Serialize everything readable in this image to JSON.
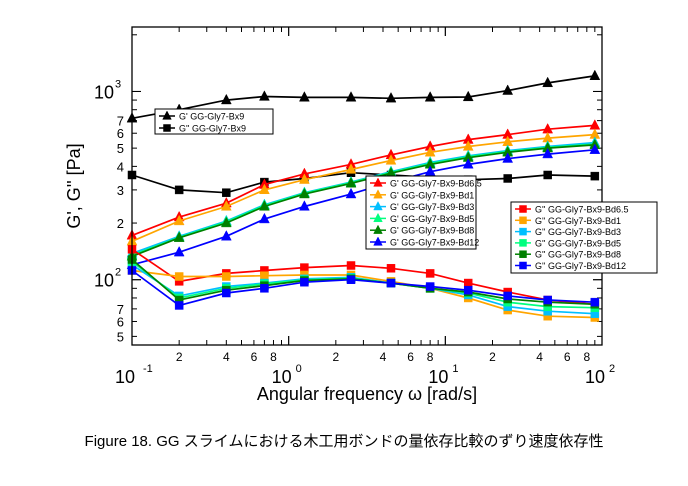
{
  "caption": "Figure 18. GG スライムにおける木工用ボンドの量依存比較のずり速度依存性",
  "chart_data": {
    "type": "line",
    "xscale": "log",
    "yscale": "log",
    "xlim": [
      0.1,
      100
    ],
    "ylim": [
      45,
      2200
    ],
    "xlabel": "Angular frequency ω [rad/s]",
    "ylabel": "G',  G'' [Pa]",
    "xticks": [
      {
        "v": 0.1,
        "label": "10",
        "exp": "-1"
      },
      {
        "v": 1,
        "label": "10",
        "exp": "0"
      },
      {
        "v": 10,
        "label": "10",
        "exp": "1"
      },
      {
        "v": 100,
        "label": "10",
        "exp": "2"
      }
    ],
    "xminor_labels": [
      {
        "v": 0.2,
        "label": "2"
      },
      {
        "v": 0.4,
        "label": "4"
      },
      {
        "v": 0.6,
        "label": "6"
      },
      {
        "v": 0.8,
        "label": "8"
      },
      {
        "v": 2,
        "label": "2"
      },
      {
        "v": 4,
        "label": "4"
      },
      {
        "v": 6,
        "label": "6"
      },
      {
        "v": 8,
        "label": "8"
      },
      {
        "v": 20,
        "label": "2"
      },
      {
        "v": 40,
        "label": "4"
      },
      {
        "v": 60,
        "label": "6"
      },
      {
        "v": 80,
        "label": "8"
      }
    ],
    "yticks": [
      {
        "v": 100,
        "label": "10",
        "exp": "2"
      },
      {
        "v": 1000,
        "label": "10",
        "exp": "3"
      }
    ],
    "yminor_labels": [
      {
        "v": 50,
        "label": "5"
      },
      {
        "v": 60,
        "label": "6"
      },
      {
        "v": 70,
        "label": "7"
      },
      {
        "v": 200,
        "label": "2"
      },
      {
        "v": 300,
        "label": "3"
      },
      {
        "v": 400,
        "label": "4"
      },
      {
        "v": 500,
        "label": "5"
      },
      {
        "v": 600,
        "label": "6"
      },
      {
        "v": 700,
        "label": "7"
      }
    ],
    "x": [
      0.1,
      0.2,
      0.4,
      0.7,
      1.26,
      2.5,
      4.5,
      8,
      14,
      25,
      45,
      90
    ],
    "series": [
      {
        "name": "G' GG-Gly7-Bx9",
        "color": "#000000",
        "marker": "triangle",
        "values": [
          720,
          800,
          900,
          940,
          930,
          930,
          920,
          930,
          935,
          1010,
          1110,
          1210
        ]
      },
      {
        "name": "G'' GG-Gly7-Bx9",
        "color": "#000000",
        "marker": "square",
        "values": [
          360,
          300,
          290,
          330,
          345,
          370,
          360,
          350,
          340,
          345,
          360,
          355
        ]
      },
      {
        "name": "G' GG-Gly7-Bx9-Bd6.5",
        "color": "#ff0000",
        "marker": "triangle",
        "values": [
          172,
          215,
          255,
          320,
          365,
          410,
          460,
          510,
          555,
          590,
          630,
          660
        ]
      },
      {
        "name": "G' GG-Gly7-Bx9-Bd1",
        "color": "#ffa500",
        "marker": "triangle",
        "values": [
          160,
          205,
          245,
          300,
          340,
          385,
          430,
          475,
          510,
          540,
          565,
          590
        ]
      },
      {
        "name": "G' GG-Gly7-Bx9-Bd3",
        "color": "#00bfff",
        "marker": "triangle",
        "values": [
          138,
          170,
          205,
          250,
          290,
          330,
          375,
          420,
          455,
          485,
          510,
          535
        ]
      },
      {
        "name": "G' GG-Gly7-Bx9-Bd5",
        "color": "#00ff7f",
        "marker": "triangle",
        "values": [
          135,
          168,
          203,
          248,
          288,
          328,
          372,
          415,
          450,
          480,
          505,
          525
        ]
      },
      {
        "name": "G' GG-Gly7-Bx9-Bd8",
        "color": "#008000",
        "marker": "triangle",
        "values": [
          133,
          167,
          200,
          245,
          285,
          325,
          368,
          410,
          445,
          475,
          500,
          520
        ]
      },
      {
        "name": "G' GG-Gly7-Bx9-Bd12",
        "color": "#0000ff",
        "marker": "triangle",
        "values": [
          120,
          140,
          170,
          210,
          245,
          285,
          330,
          375,
          410,
          440,
          465,
          490
        ]
      },
      {
        "name": "G'' GG-Gly7-Bx9-Bd6.5",
        "color": "#ff0000",
        "marker": "square",
        "values": [
          145,
          98,
          108,
          112,
          116,
          119,
          115,
          108,
          96,
          86,
          78,
          74
        ]
      },
      {
        "name": "G'' GG-Gly7-Bx9-Bd1",
        "color": "#ffa500",
        "marker": "square",
        "values": [
          112,
          104,
          104,
          105,
          106,
          106,
          98,
          90,
          80,
          69,
          64,
          63
        ]
      },
      {
        "name": "G'' GG-Gly7-Bx9-Bd3",
        "color": "#00bfff",
        "marker": "square",
        "values": [
          120,
          82,
          92,
          96,
          101,
          103,
          96,
          90,
          83,
          72,
          68,
          66
        ]
      },
      {
        "name": "G'' GG-Gly7-Bx9-Bd5",
        "color": "#00ff7f",
        "marker": "square",
        "values": [
          125,
          80,
          90,
          95,
          100,
          102,
          96,
          90,
          85,
          76,
          72,
          71
        ]
      },
      {
        "name": "G'' GG-Gly7-Bx9-Bd8",
        "color": "#008000",
        "marker": "square",
        "values": [
          128,
          78,
          88,
          93,
          99,
          101,
          96,
          90,
          86,
          79,
          76,
          74
        ]
      },
      {
        "name": "G'' GG-Gly7-Bx9-Bd12",
        "color": "#0000ff",
        "marker": "square",
        "values": [
          112,
          73,
          85,
          90,
          97,
          100,
          96,
          92,
          88,
          82,
          78,
          76
        ]
      }
    ],
    "legends": [
      {
        "series": [
          0,
          1
        ]
      },
      {
        "series": [
          2,
          3,
          4,
          5,
          6,
          7
        ]
      },
      {
        "series": [
          8,
          9,
          10,
          11,
          12,
          13
        ]
      }
    ]
  }
}
